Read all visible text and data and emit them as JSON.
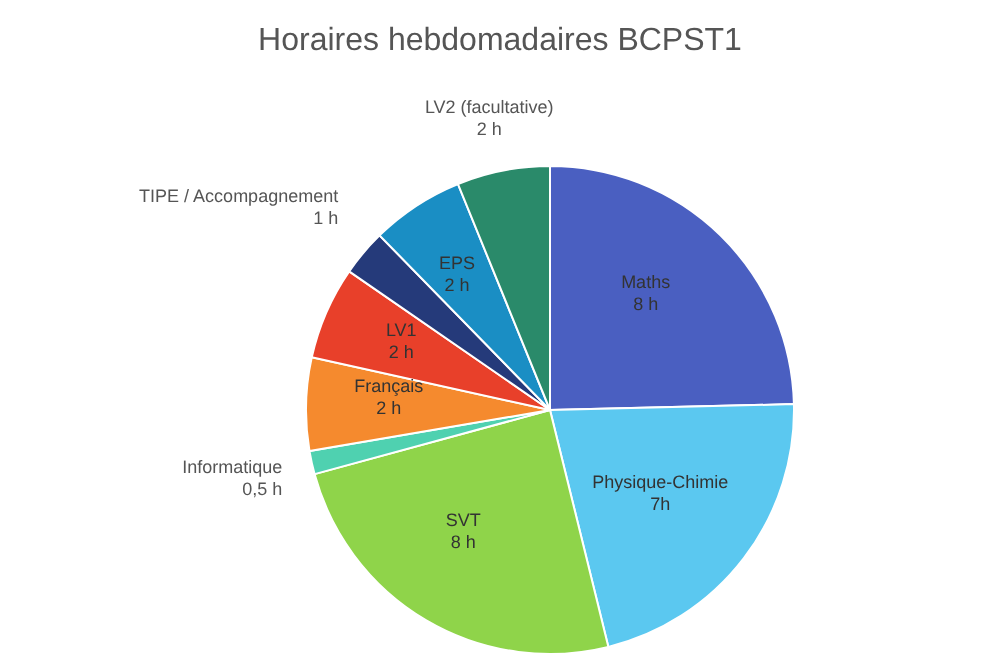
{
  "chart_data": {
    "type": "pie",
    "title": "Horaires hebdomadaires BCPST1",
    "categories": [
      "Maths",
      "Physique-Chimie",
      "SVT",
      "Informatique",
      "Français",
      "LV1",
      "TIPE / Accompagnement",
      "EPS",
      "LV2 (facultative)"
    ],
    "values": [
      8,
      7,
      8,
      0.5,
      2,
      2,
      1,
      2,
      2
    ],
    "value_labels": [
      "8 h",
      "7h",
      "8 h",
      "0,5 h",
      "2 h",
      "2 h",
      "1 h",
      "2 h",
      "2 h"
    ],
    "colors": [
      "#4a5fc1",
      "#5bc8f0",
      "#8fd44a",
      "#4fd1b0",
      "#f58a2e",
      "#e8402a",
      "#253a7a",
      "#1a8ec4",
      "#2a8a6a"
    ],
    "legend": false
  }
}
